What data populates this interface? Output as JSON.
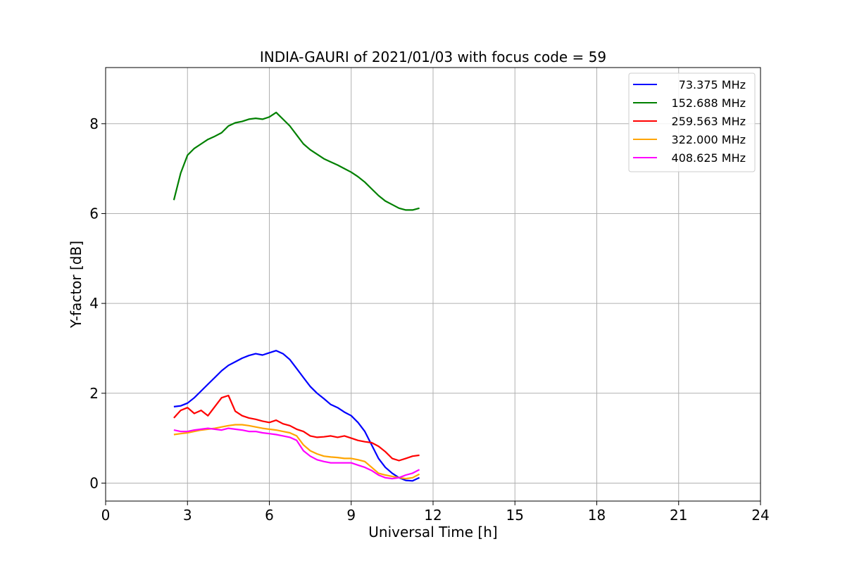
{
  "chart_data": {
    "type": "line",
    "title": "INDIA-GAURI of 2021/01/03 with focus code = 59",
    "xlabel": "Universal Time [h]",
    "ylabel": "Y-factor [dB]",
    "xlim": [
      0,
      24
    ],
    "ylim": [
      -0.4,
      9.25
    ],
    "xticks": [
      0,
      3,
      6,
      9,
      12,
      15,
      18,
      21,
      24
    ],
    "xtick_labels": [
      "0",
      "3",
      "6",
      "9",
      "12",
      "15",
      "18",
      "21",
      "24"
    ],
    "yticks": [
      0,
      2,
      4,
      6,
      8
    ],
    "ytick_labels": [
      "0",
      "2",
      "4",
      "6",
      "8"
    ],
    "grid": true,
    "legend_position": "top-right",
    "series": [
      {
        "name": "73.375 MHz",
        "color": "#0000ff",
        "x": [
          2.5,
          2.75,
          3.0,
          3.25,
          3.5,
          3.75,
          4.0,
          4.25,
          4.5,
          4.75,
          5.0,
          5.25,
          5.5,
          5.75,
          6.0,
          6.25,
          6.5,
          6.75,
          7.0,
          7.25,
          7.5,
          7.75,
          8.0,
          8.25,
          8.5,
          8.75,
          9.0,
          9.25,
          9.5,
          9.75,
          10.0,
          10.25,
          10.5,
          10.75,
          11.0,
          11.25,
          11.5
        ],
        "y": [
          1.7,
          1.72,
          1.78,
          1.9,
          2.05,
          2.2,
          2.35,
          2.5,
          2.62,
          2.7,
          2.78,
          2.84,
          2.88,
          2.85,
          2.9,
          2.95,
          2.88,
          2.75,
          2.55,
          2.35,
          2.15,
          2.0,
          1.88,
          1.75,
          1.68,
          1.58,
          1.5,
          1.35,
          1.15,
          0.85,
          0.55,
          0.35,
          0.22,
          0.12,
          0.06,
          0.05,
          0.12
        ]
      },
      {
        "name": "152.688 MHz",
        "color": "#008000",
        "x": [
          2.5,
          2.75,
          3.0,
          3.25,
          3.5,
          3.75,
          4.0,
          4.25,
          4.5,
          4.75,
          5.0,
          5.25,
          5.5,
          5.75,
          6.0,
          6.25,
          6.5,
          6.75,
          7.0,
          7.25,
          7.5,
          7.75,
          8.0,
          8.25,
          8.5,
          8.75,
          9.0,
          9.25,
          9.5,
          9.75,
          10.0,
          10.25,
          10.5,
          10.75,
          11.0,
          11.25,
          11.5
        ],
        "y": [
          6.3,
          6.9,
          7.3,
          7.45,
          7.55,
          7.65,
          7.72,
          7.8,
          7.95,
          8.02,
          8.05,
          8.1,
          8.12,
          8.1,
          8.15,
          8.25,
          8.1,
          7.95,
          7.75,
          7.55,
          7.42,
          7.32,
          7.22,
          7.15,
          7.08,
          7.0,
          6.92,
          6.82,
          6.7,
          6.55,
          6.4,
          6.28,
          6.2,
          6.12,
          6.08,
          6.08,
          6.12
        ]
      },
      {
        "name": "259.563 MHz",
        "color": "#ff0000",
        "x": [
          2.5,
          2.75,
          3.0,
          3.25,
          3.5,
          3.75,
          4.0,
          4.25,
          4.5,
          4.75,
          5.0,
          5.25,
          5.5,
          5.75,
          6.0,
          6.25,
          6.5,
          6.75,
          7.0,
          7.25,
          7.5,
          7.75,
          8.0,
          8.25,
          8.5,
          8.75,
          9.0,
          9.25,
          9.5,
          9.75,
          10.0,
          10.25,
          10.5,
          10.75,
          11.0,
          11.25,
          11.5
        ],
        "y": [
          1.45,
          1.62,
          1.68,
          1.55,
          1.62,
          1.5,
          1.7,
          1.9,
          1.95,
          1.6,
          1.5,
          1.45,
          1.42,
          1.38,
          1.35,
          1.4,
          1.32,
          1.28,
          1.2,
          1.15,
          1.05,
          1.02,
          1.03,
          1.05,
          1.02,
          1.05,
          1.0,
          0.95,
          0.92,
          0.9,
          0.82,
          0.7,
          0.55,
          0.5,
          0.55,
          0.6,
          0.62
        ]
      },
      {
        "name": "322.000 MHz",
        "color": "#ffa500",
        "x": [
          2.5,
          2.75,
          3.0,
          3.25,
          3.5,
          3.75,
          4.0,
          4.25,
          4.5,
          4.75,
          5.0,
          5.25,
          5.5,
          5.75,
          6.0,
          6.25,
          6.5,
          6.75,
          7.0,
          7.25,
          7.5,
          7.75,
          8.0,
          8.25,
          8.5,
          8.75,
          9.0,
          9.25,
          9.5,
          9.75,
          10.0,
          10.25,
          10.5,
          10.75,
          11.0,
          11.25,
          11.5
        ],
        "y": [
          1.08,
          1.1,
          1.12,
          1.15,
          1.18,
          1.2,
          1.22,
          1.25,
          1.28,
          1.3,
          1.3,
          1.28,
          1.25,
          1.22,
          1.2,
          1.18,
          1.15,
          1.12,
          1.05,
          0.85,
          0.72,
          0.65,
          0.6,
          0.58,
          0.57,
          0.55,
          0.55,
          0.52,
          0.48,
          0.35,
          0.22,
          0.18,
          0.15,
          0.12,
          0.1,
          0.12,
          0.2
        ]
      },
      {
        "name": "408.625 MHz",
        "color": "#ff00ff",
        "x": [
          2.5,
          2.75,
          3.0,
          3.25,
          3.5,
          3.75,
          4.0,
          4.25,
          4.5,
          4.75,
          5.0,
          5.25,
          5.5,
          5.75,
          6.0,
          6.25,
          6.5,
          6.75,
          7.0,
          7.25,
          7.5,
          7.75,
          8.0,
          8.25,
          8.5,
          8.75,
          9.0,
          9.25,
          9.5,
          9.75,
          10.0,
          10.25,
          10.5,
          10.75,
          11.0,
          11.25,
          11.5
        ],
        "y": [
          1.18,
          1.15,
          1.15,
          1.18,
          1.2,
          1.22,
          1.2,
          1.18,
          1.22,
          1.2,
          1.18,
          1.15,
          1.15,
          1.12,
          1.1,
          1.08,
          1.05,
          1.02,
          0.95,
          0.72,
          0.6,
          0.52,
          0.48,
          0.45,
          0.45,
          0.45,
          0.45,
          0.4,
          0.35,
          0.28,
          0.18,
          0.12,
          0.1,
          0.12,
          0.18,
          0.22,
          0.3
        ]
      }
    ]
  }
}
